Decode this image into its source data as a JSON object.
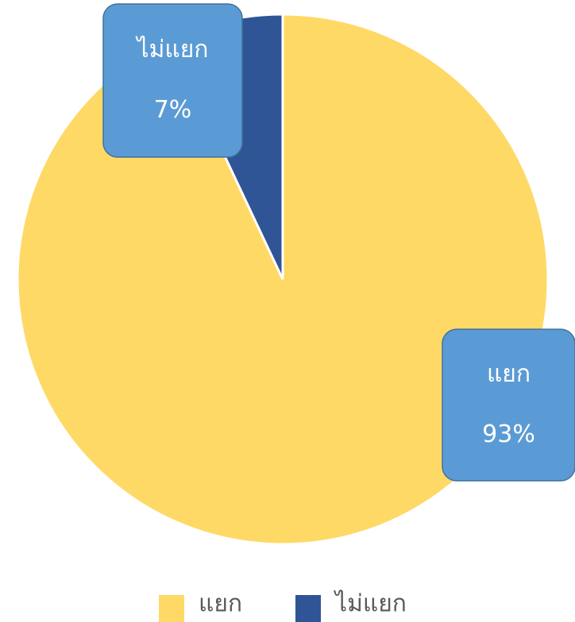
{
  "chart_data": {
    "type": "pie",
    "categories": [
      "แยก",
      "ไม่แยก"
    ],
    "values": [
      93,
      7
    ],
    "value_labels": [
      "93%",
      "7%"
    ],
    "colors": [
      "#FFD966",
      "#2F5597"
    ],
    "legend": "bottom"
  }
}
